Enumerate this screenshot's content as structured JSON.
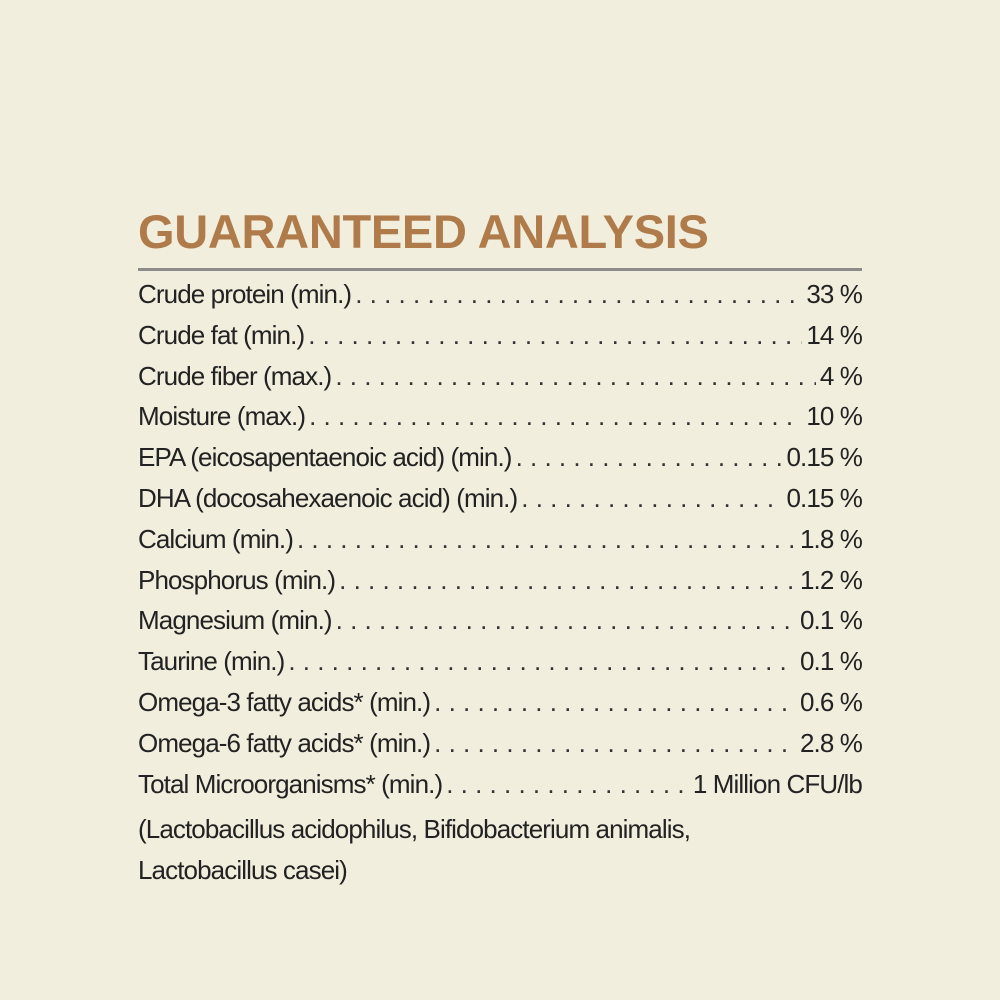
{
  "title": "GUARANTEED ANALYSIS",
  "colors": {
    "background": "#f1eedd",
    "title": "#b07b4a",
    "rule": "#8c8c8a",
    "text": "#222222"
  },
  "rows": [
    {
      "label": "Crude protein (min.)",
      "value": "33 %"
    },
    {
      "label": "Crude fat (min.)",
      "value": "14 %"
    },
    {
      "label": "Crude fiber (max.)",
      "value": "4 %"
    },
    {
      "label": "Moisture (max.)",
      "value": "10 %"
    },
    {
      "label": "EPA (eicosapentaenoic acid) (min.)",
      "value": "0.15 %"
    },
    {
      "label": "DHA (docosahexaenoic acid) (min.)",
      "value": "0.15 %"
    },
    {
      "label": "Calcium (min.)",
      "value": "1.8 %"
    },
    {
      "label": "Phosphorus (min.)",
      "value": "1.2 %"
    },
    {
      "label": "Magnesium (min.)",
      "value": "0.1 %"
    },
    {
      "label": "Taurine (min.)",
      "value": "0.1 %"
    },
    {
      "label": "Omega-3 fatty acids* (min.)",
      "value": "0.6 %"
    },
    {
      "label": "Omega-6 fatty acids* (min.)",
      "value": "2.8 %"
    },
    {
      "label": "Total Microorganisms* (min.)",
      "value": "1 Million CFU/lb"
    }
  ],
  "note_lines": [
    "(Lactobacillus acidophilus, Bifidobacterium animalis,",
    "Lactobacillus casei)"
  ]
}
